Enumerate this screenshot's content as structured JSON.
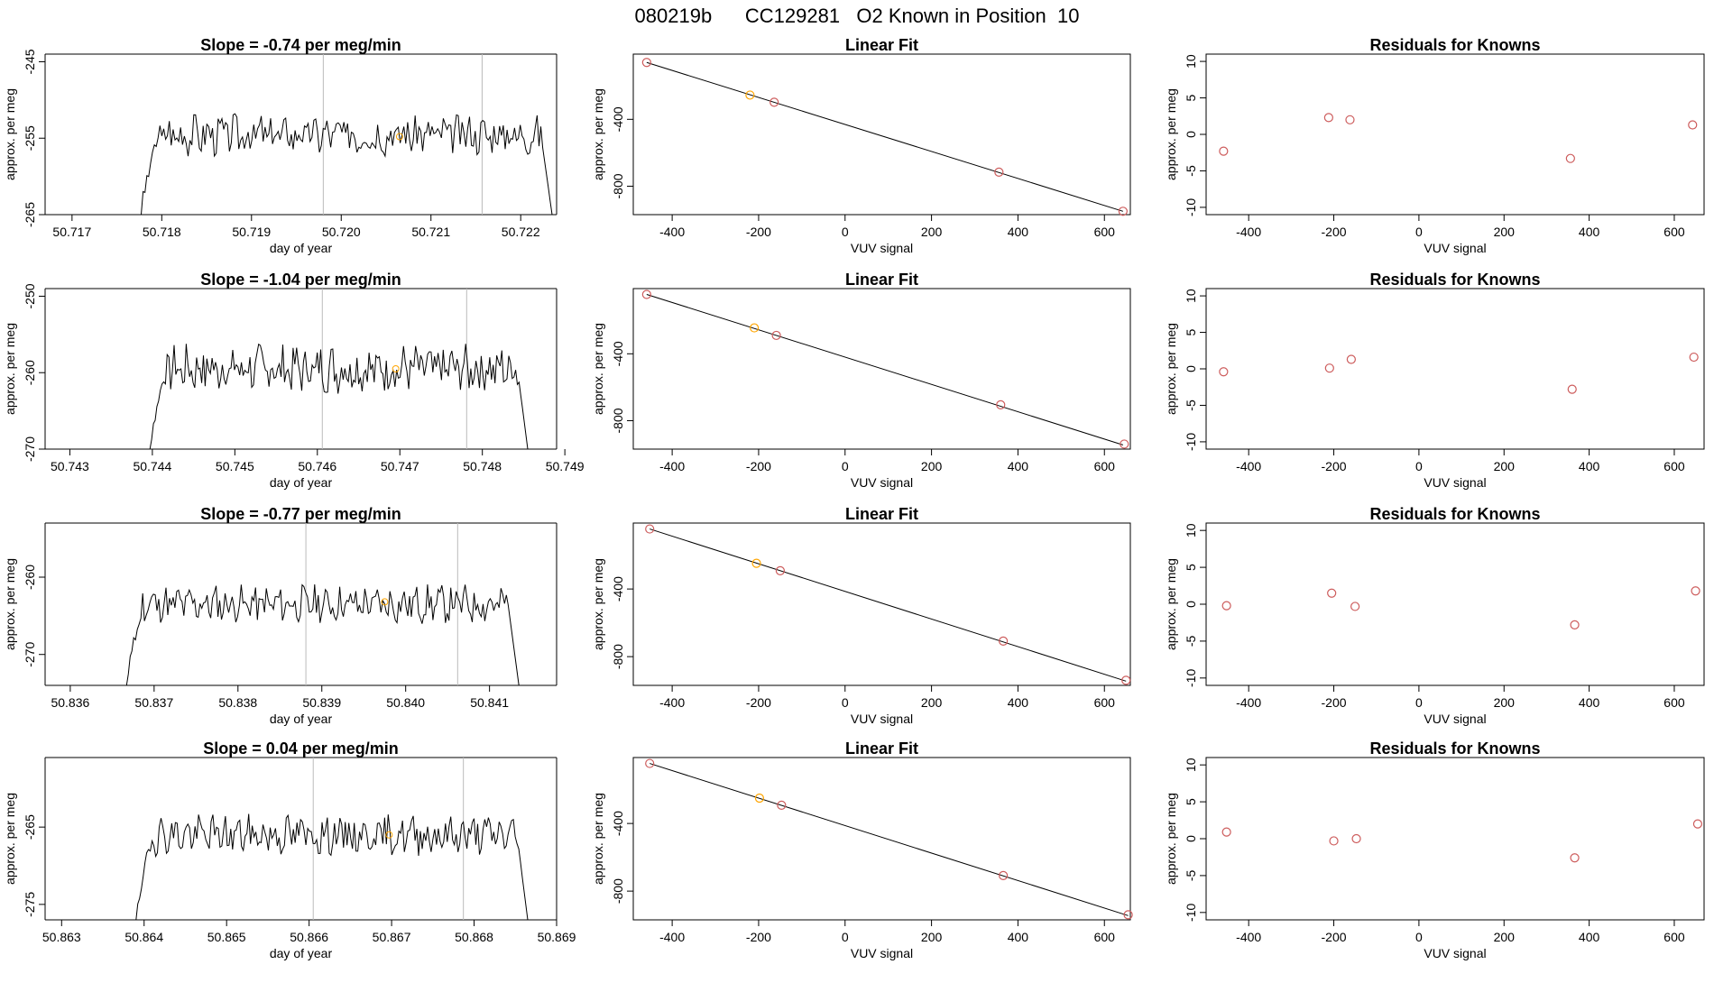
{
  "page_title": "080219b      CC129281   O2 Known in Position  10",
  "colors": {
    "trace": "#000000",
    "vline": "#bbbbbb",
    "highlight": "#ffa500",
    "fit_point": "#cd5c5c",
    "residual_point": "#cd5c5c"
  },
  "chart_data": [
    {
      "type": "line",
      "title": "Slope =  -0.74  per meg/min",
      "xlabel": "day of year",
      "ylabel": "approx. per meg",
      "xlim": [
        50.7167,
        50.7224
      ],
      "ylim": [
        -265,
        -244
      ],
      "xticks": [
        "50.717",
        "50.718",
        "50.719",
        "50.720",
        "50.721",
        "50.722"
      ],
      "xtick_values": [
        50.717,
        50.718,
        50.719,
        50.72,
        50.721,
        50.722
      ],
      "yticks": [
        "-245",
        "-255",
        "-265"
      ],
      "ytick_values": [
        -245,
        -255,
        -265
      ],
      "vlines": [
        50.7198,
        50.72157
      ],
      "start": 50.71775,
      "end": 50.72235,
      "base": -254.5,
      "amplitude": 2.2,
      "seed": 3,
      "highlight_point": {
        "x": 50.72065,
        "y": -254.8
      }
    },
    {
      "type": "line",
      "title": "Slope =  -1.04  per meg/min",
      "xlabel": "day of year",
      "ylabel": "approx. per meg",
      "xlim": [
        50.7427,
        50.7489
      ],
      "ylim": [
        -270,
        -249
      ],
      "xticks": [
        "50.743",
        "50.744",
        "50.745",
        "50.746",
        "50.747",
        "50.748",
        "50.749"
      ],
      "xtick_values": [
        50.743,
        50.744,
        50.745,
        50.746,
        50.747,
        50.748,
        50.749
      ],
      "yticks": [
        "-250",
        "-260",
        "-270"
      ],
      "ytick_values": [
        -250,
        -260,
        -270
      ],
      "vlines": [
        50.74606,
        50.74781
      ],
      "start": 50.74395,
      "end": 50.74855,
      "base": -259.5,
      "amplitude": 2.6,
      "seed": 7,
      "highlight_point": {
        "x": 50.74695,
        "y": -259.5
      }
    },
    {
      "type": "line",
      "title": "Slope =  -0.77  per meg/min",
      "xlabel": "day of year",
      "ylabel": "approx. per meg",
      "xlim": [
        50.8357,
        50.8418
      ],
      "ylim": [
        -274,
        -253
      ],
      "xticks": [
        "50.836",
        "50.837",
        "50.838",
        "50.839",
        "50.840",
        "50.841"
      ],
      "xtick_values": [
        50.836,
        50.837,
        50.838,
        50.839,
        50.84,
        50.841
      ],
      "yticks": [
        "-260",
        "-270"
      ],
      "ytick_values": [
        -260,
        -270
      ],
      "vlines": [
        50.83881,
        50.84062
      ],
      "start": 50.83665,
      "end": 50.84135,
      "base": -263.5,
      "amplitude": 2.0,
      "seed": 11,
      "highlight_point": {
        "x": 50.83975,
        "y": -263.2
      }
    },
    {
      "type": "line",
      "title": "Slope =  0.04  per meg/min",
      "xlabel": "day of year",
      "ylabel": "approx. per meg",
      "xlim": [
        50.8628,
        50.869
      ],
      "ylim": [
        -277,
        -256
      ],
      "xticks": [
        "50.863",
        "50.864",
        "50.865",
        "50.866",
        "50.867",
        "50.868",
        "50.869"
      ],
      "xtick_values": [
        50.863,
        50.864,
        50.865,
        50.866,
        50.867,
        50.868,
        50.869
      ],
      "yticks": [
        "-265",
        "-275"
      ],
      "ytick_values": [
        -265,
        -275
      ],
      "vlines": [
        50.86605,
        50.86787
      ],
      "start": 50.86388,
      "end": 50.86865,
      "base": -266.0,
      "amplitude": 2.1,
      "seed": 19,
      "highlight_point": {
        "x": 50.86697,
        "y": -266.0
      }
    },
    {
      "type": "scatter",
      "title": "Linear Fit",
      "xlabel": "VUV signal",
      "ylabel": "approx. per meg",
      "xlim": [
        -490,
        660
      ],
      "ylim": [
        -970,
        -10
      ],
      "xticks": [
        "-400",
        "-200",
        "0",
        "200",
        "400",
        "600"
      ],
      "xtick_values": [
        -400,
        -200,
        0,
        200,
        400,
        600
      ],
      "yticks": [
        "-400",
        "-800"
      ],
      "ytick_values": [
        -400,
        -800
      ],
      "fit_line": [
        [
          -459,
          -60
        ],
        [
          643,
          -950
        ]
      ],
      "points": [
        {
          "x": -459,
          "y": -60,
          "highlight": false
        },
        {
          "x": -220,
          "y": -255,
          "highlight": true
        },
        {
          "x": -164,
          "y": -298,
          "highlight": false
        },
        {
          "x": 356,
          "y": -716,
          "highlight": false
        },
        {
          "x": 643,
          "y": -950,
          "highlight": false
        }
      ]
    },
    {
      "type": "scatter",
      "title": "Linear Fit",
      "xlabel": "VUV signal",
      "ylabel": "approx. per meg",
      "xlim": [
        -490,
        660
      ],
      "ylim": [
        -970,
        -10
      ],
      "xticks": [
        "-400",
        "-200",
        "0",
        "200",
        "400",
        "600"
      ],
      "xtick_values": [
        -400,
        -200,
        0,
        200,
        400,
        600
      ],
      "yticks": [
        "-400",
        "-800"
      ],
      "ytick_values": [
        -400,
        -800
      ],
      "fit_line": [
        [
          -459,
          -45
        ],
        [
          643,
          -945
        ]
      ],
      "points": [
        {
          "x": -459,
          "y": -45,
          "highlight": false
        },
        {
          "x": -210,
          "y": -245,
          "highlight": true
        },
        {
          "x": -159,
          "y": -290,
          "highlight": false
        },
        {
          "x": 360,
          "y": -705,
          "highlight": false
        },
        {
          "x": 646,
          "y": -940,
          "highlight": false
        }
      ]
    },
    {
      "type": "scatter",
      "title": "Linear Fit",
      "xlabel": "VUV signal",
      "ylabel": "approx. per meg",
      "xlim": [
        -490,
        660
      ],
      "ylim": [
        -970,
        -10
      ],
      "xticks": [
        "-400",
        "-200",
        "0",
        "200",
        "400",
        "600"
      ],
      "xtick_values": [
        -400,
        -200,
        0,
        200,
        400,
        600
      ],
      "yticks": [
        "-400",
        "-800"
      ],
      "ytick_values": [
        -400,
        -800
      ],
      "fit_line": [
        [
          -452,
          -45
        ],
        [
          650,
          -945
        ]
      ],
      "points": [
        {
          "x": -452,
          "y": -45,
          "highlight": false
        },
        {
          "x": -205,
          "y": -248,
          "highlight": true
        },
        {
          "x": -150,
          "y": -292,
          "highlight": false
        },
        {
          "x": 366,
          "y": -708,
          "highlight": false
        },
        {
          "x": 650,
          "y": -940,
          "highlight": false
        }
      ]
    },
    {
      "type": "scatter",
      "title": "Linear Fit",
      "xlabel": "VUV signal",
      "ylabel": "approx. per meg",
      "xlim": [
        -490,
        660
      ],
      "ylim": [
        -970,
        -10
      ],
      "xticks": [
        "-400",
        "-200",
        "0",
        "200",
        "400",
        "600"
      ],
      "xtick_values": [
        -400,
        -200,
        0,
        200,
        400,
        600
      ],
      "yticks": [
        "-400",
        "-800"
      ],
      "ytick_values": [
        -400,
        -800
      ],
      "fit_line": [
        [
          -452,
          -45
        ],
        [
          655,
          -945
        ]
      ],
      "points": [
        {
          "x": -452,
          "y": -45,
          "highlight": false
        },
        {
          "x": -198,
          "y": -250,
          "highlight": true
        },
        {
          "x": -147,
          "y": -292,
          "highlight": false
        },
        {
          "x": 366,
          "y": -708,
          "highlight": false
        },
        {
          "x": 655,
          "y": -940,
          "highlight": false
        }
      ]
    },
    {
      "type": "scatter",
      "title": "Residuals for Knowns",
      "xlabel": "VUV signal",
      "ylabel": "approx. per meg",
      "xlim": [
        -500,
        670
      ],
      "ylim": [
        -11,
        11
      ],
      "xticks": [
        "-400",
        "-200",
        "0",
        "200",
        "400",
        "600"
      ],
      "xtick_values": [
        -400,
        -200,
        0,
        200,
        400,
        600
      ],
      "yticks": [
        "10",
        "5",
        "0",
        "-5",
        "-10"
      ],
      "ytick_values": [
        10,
        5,
        0,
        -5,
        -10
      ],
      "points": [
        {
          "x": -459,
          "y": -2.3
        },
        {
          "x": -212,
          "y": 2.3
        },
        {
          "x": -162,
          "y": 2.0
        },
        {
          "x": 356,
          "y": -3.3
        },
        {
          "x": 643,
          "y": 1.3
        }
      ]
    },
    {
      "type": "scatter",
      "title": "Residuals for Knowns",
      "xlabel": "VUV signal",
      "ylabel": "approx. per meg",
      "xlim": [
        -500,
        670
      ],
      "ylim": [
        -11,
        11
      ],
      "xticks": [
        "-400",
        "-200",
        "0",
        "200",
        "400",
        "600"
      ],
      "xtick_values": [
        -400,
        -200,
        0,
        200,
        400,
        600
      ],
      "yticks": [
        "10",
        "5",
        "0",
        "-5",
        "-10"
      ],
      "ytick_values": [
        10,
        5,
        0,
        -5,
        -10
      ],
      "points": [
        {
          "x": -459,
          "y": -0.4
        },
        {
          "x": -210,
          "y": 0.1
        },
        {
          "x": -159,
          "y": 1.3
        },
        {
          "x": 360,
          "y": -2.8
        },
        {
          "x": 646,
          "y": 1.6
        }
      ]
    },
    {
      "type": "scatter",
      "title": "Residuals for Knowns",
      "xlabel": "VUV signal",
      "ylabel": "approx. per meg",
      "xlim": [
        -500,
        670
      ],
      "ylim": [
        -11,
        11
      ],
      "xticks": [
        "-400",
        "-200",
        "0",
        "200",
        "400",
        "600"
      ],
      "xtick_values": [
        -400,
        -200,
        0,
        200,
        400,
        600
      ],
      "yticks": [
        "10",
        "5",
        "0",
        "-5",
        "-10"
      ],
      "ytick_values": [
        10,
        5,
        0,
        -5,
        -10
      ],
      "points": [
        {
          "x": -452,
          "y": -0.2
        },
        {
          "x": -205,
          "y": 1.5
        },
        {
          "x": -150,
          "y": -0.3
        },
        {
          "x": 366,
          "y": -2.8
        },
        {
          "x": 650,
          "y": 1.8
        }
      ]
    },
    {
      "type": "scatter",
      "title": "Residuals for Knowns",
      "xlabel": "VUV signal",
      "ylabel": "approx. per meg",
      "xlim": [
        -500,
        670
      ],
      "ylim": [
        -11,
        11
      ],
      "xticks": [
        "-400",
        "-200",
        "0",
        "200",
        "400",
        "600"
      ],
      "xtick_values": [
        -400,
        -200,
        0,
        200,
        400,
        600
      ],
      "yticks": [
        "10",
        "5",
        "0",
        "-5",
        "-10"
      ],
      "ytick_values": [
        10,
        5,
        0,
        -5,
        -10
      ],
      "points": [
        {
          "x": -452,
          "y": 0.9
        },
        {
          "x": -200,
          "y": -0.3
        },
        {
          "x": -147,
          "y": 0.0
        },
        {
          "x": 366,
          "y": -2.6
        },
        {
          "x": 655,
          "y": 2.0
        }
      ]
    }
  ]
}
